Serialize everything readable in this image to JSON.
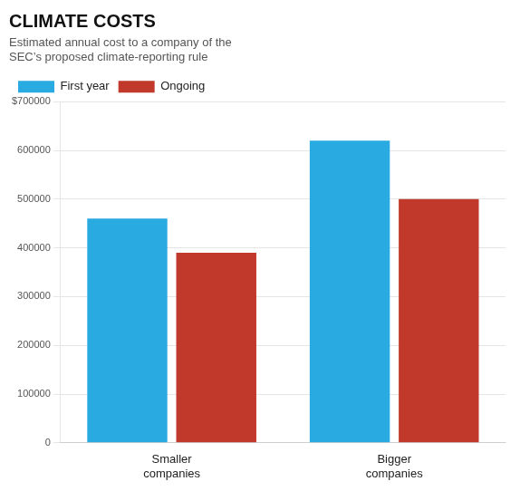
{
  "chart_data": {
    "type": "bar",
    "title": "CLIMATE COSTS",
    "subtitle": "Estimated annual cost to a company of the\nSEC’s proposed climate-reporting rule",
    "categories": [
      "Smaller\ncompanies",
      "Bigger\ncompanies"
    ],
    "series": [
      {
        "name": "First year",
        "color": "#29ABE2",
        "values": [
          460000,
          620000
        ]
      },
      {
        "name": "Ongoing",
        "color": "#C0392B",
        "values": [
          390000,
          500000
        ]
      }
    ],
    "ylim": [
      0,
      700000
    ],
    "yticks": [
      0,
      100000,
      200000,
      300000,
      400000,
      500000,
      600000,
      {
        "value": 700000,
        "label": "$700000"
      }
    ],
    "grid": true,
    "legend": "upper left"
  }
}
